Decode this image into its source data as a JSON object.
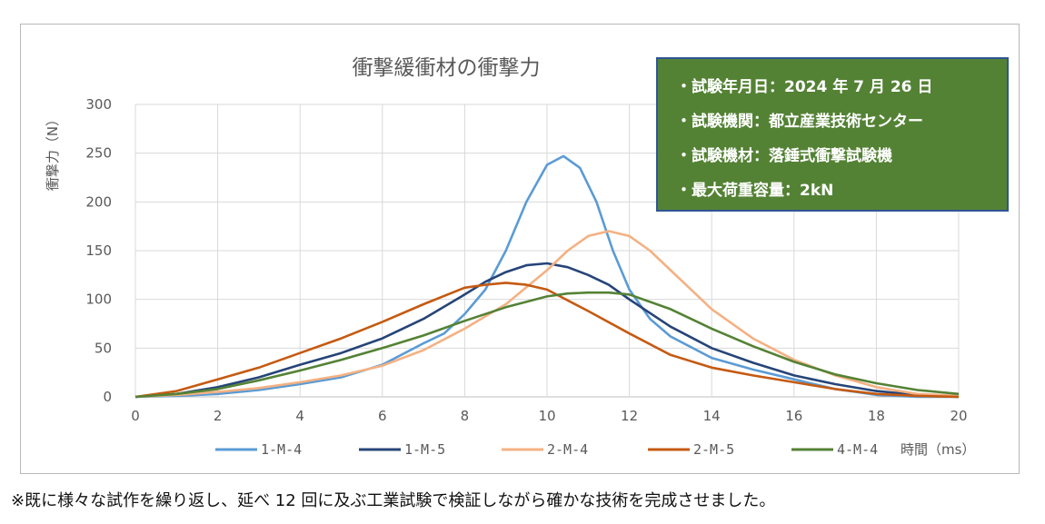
{
  "info_box": {
    "lines": [
      "・試験年月日：2024 年 7 月 26 日",
      "・試験機関：都立産業技術センター",
      "・試験機材：落錘式衝撃試験機",
      "・最大荷重容量：2kN"
    ]
  },
  "footnote": "※既に様々な試作を繰り返し、延べ 12 回に及ぶ工業試験で検証しながら確かな技術を完成させました。",
  "chart_data": {
    "type": "line",
    "title": "衝撃緩衝材の衝撃力",
    "xlabel": "時間（ms）",
    "ylabel": "衝撃力（N）",
    "xlim": [
      0,
      20
    ],
    "ylim": [
      0,
      300
    ],
    "xticks": [
      "0",
      "2",
      "4",
      "6",
      "8",
      "10",
      "12",
      "14",
      "16",
      "18",
      "20"
    ],
    "yticks": [
      "0",
      "50",
      "100",
      "150",
      "200",
      "250",
      "300"
    ],
    "grid": true,
    "legend_position": "bottom",
    "series": [
      {
        "name": "1-M-4",
        "color": "#5b9bd5",
        "x": [
          0,
          1,
          2,
          3,
          4,
          5,
          6,
          7,
          7.5,
          8,
          8.5,
          9,
          9.5,
          10,
          10.4,
          10.8,
          11.2,
          11.6,
          12,
          12.5,
          13,
          14,
          15,
          16,
          17,
          18,
          19,
          20
        ],
        "y": [
          0,
          1,
          3,
          7,
          13,
          20,
          33,
          55,
          65,
          85,
          110,
          150,
          200,
          238,
          247,
          235,
          200,
          150,
          110,
          80,
          62,
          40,
          28,
          18,
          8,
          2,
          0,
          0
        ]
      },
      {
        "name": "1-M-5",
        "color": "#264478",
        "x": [
          0,
          1,
          2,
          3,
          4,
          5,
          6,
          7,
          8,
          8.5,
          9,
          9.5,
          10,
          10.5,
          11,
          11.5,
          12,
          13,
          14,
          15,
          16,
          17,
          18,
          19,
          20
        ],
        "y": [
          0,
          3,
          10,
          20,
          33,
          45,
          60,
          80,
          105,
          118,
          128,
          135,
          137,
          133,
          125,
          115,
          100,
          72,
          50,
          35,
          22,
          13,
          6,
          2,
          0
        ]
      },
      {
        "name": "2-M-4",
        "color": "#f4b183",
        "x": [
          0,
          1,
          2,
          3,
          4,
          5,
          6,
          7,
          8,
          9,
          10,
          10.5,
          11,
          11.5,
          12,
          12.5,
          13,
          14,
          15,
          16,
          17,
          18,
          19,
          20
        ],
        "y": [
          0,
          2,
          5,
          9,
          15,
          22,
          32,
          48,
          70,
          95,
          130,
          150,
          165,
          170,
          165,
          150,
          130,
          90,
          60,
          38,
          22,
          10,
          3,
          1
        ]
      },
      {
        "name": "2-M-5",
        "color": "#c55a11",
        "x": [
          0,
          1,
          2,
          3,
          4,
          5,
          6,
          7,
          8,
          8.5,
          9,
          9.5,
          10,
          11,
          12,
          13,
          14,
          15,
          16,
          17,
          18,
          19,
          20
        ],
        "y": [
          0,
          6,
          18,
          30,
          45,
          60,
          77,
          95,
          112,
          115,
          117,
          115,
          110,
          88,
          65,
          43,
          30,
          22,
          15,
          8,
          3,
          1,
          0
        ]
      },
      {
        "name": "4-M-4",
        "color": "#548235",
        "x": [
          0,
          1,
          2,
          3,
          4,
          5,
          6,
          7,
          8,
          9,
          10,
          10.5,
          11,
          11.5,
          12,
          13,
          14,
          15,
          16,
          17,
          18,
          19,
          20
        ],
        "y": [
          0,
          3,
          8,
          17,
          27,
          38,
          50,
          63,
          78,
          92,
          103,
          106,
          107,
          107,
          105,
          90,
          70,
          52,
          36,
          23,
          14,
          7,
          3
        ]
      }
    ]
  }
}
